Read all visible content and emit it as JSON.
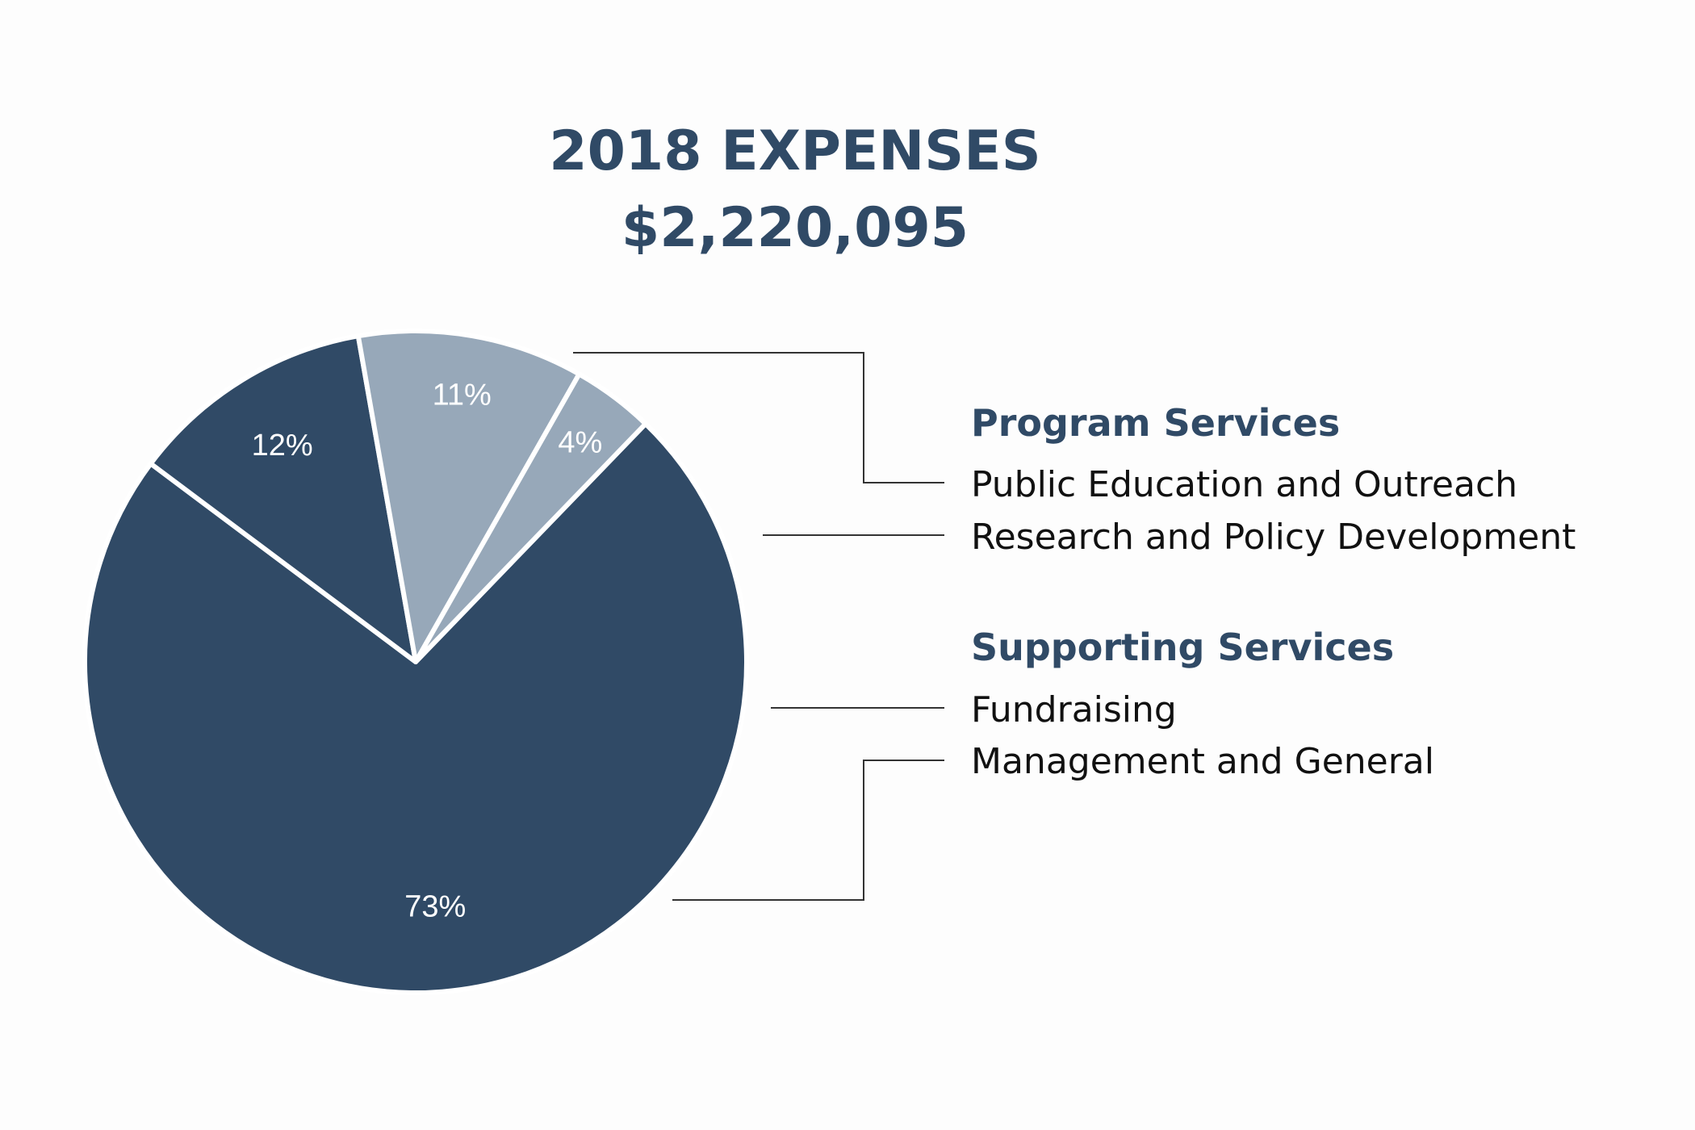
{
  "chart_data": {
    "type": "pie",
    "title": "2018 EXPENSES",
    "subtitle": "$2,220,095",
    "slices": [
      {
        "label": "Public Education and Outreach",
        "group": "Program Services",
        "value": 73,
        "display": "73%",
        "color": "#304a66"
      },
      {
        "label": "Research and Policy Development",
        "group": "Program Services",
        "value": 12,
        "display": "12%",
        "color": "#304a66"
      },
      {
        "label": "Fundraising",
        "group": "Supporting Services",
        "value": 11,
        "display": "11%",
        "color": "#97a8b9"
      },
      {
        "label": "Management and General",
        "group": "Supporting Services",
        "value": 4,
        "display": "4%",
        "color": "#97a8b9"
      }
    ],
    "groups": [
      {
        "name": "Program Services",
        "items": [
          "Public Education and Outreach",
          "Research and Policy Development"
        ]
      },
      {
        "name": "Supporting Services",
        "items": [
          "Fundraising",
          "Management and General"
        ]
      }
    ]
  }
}
